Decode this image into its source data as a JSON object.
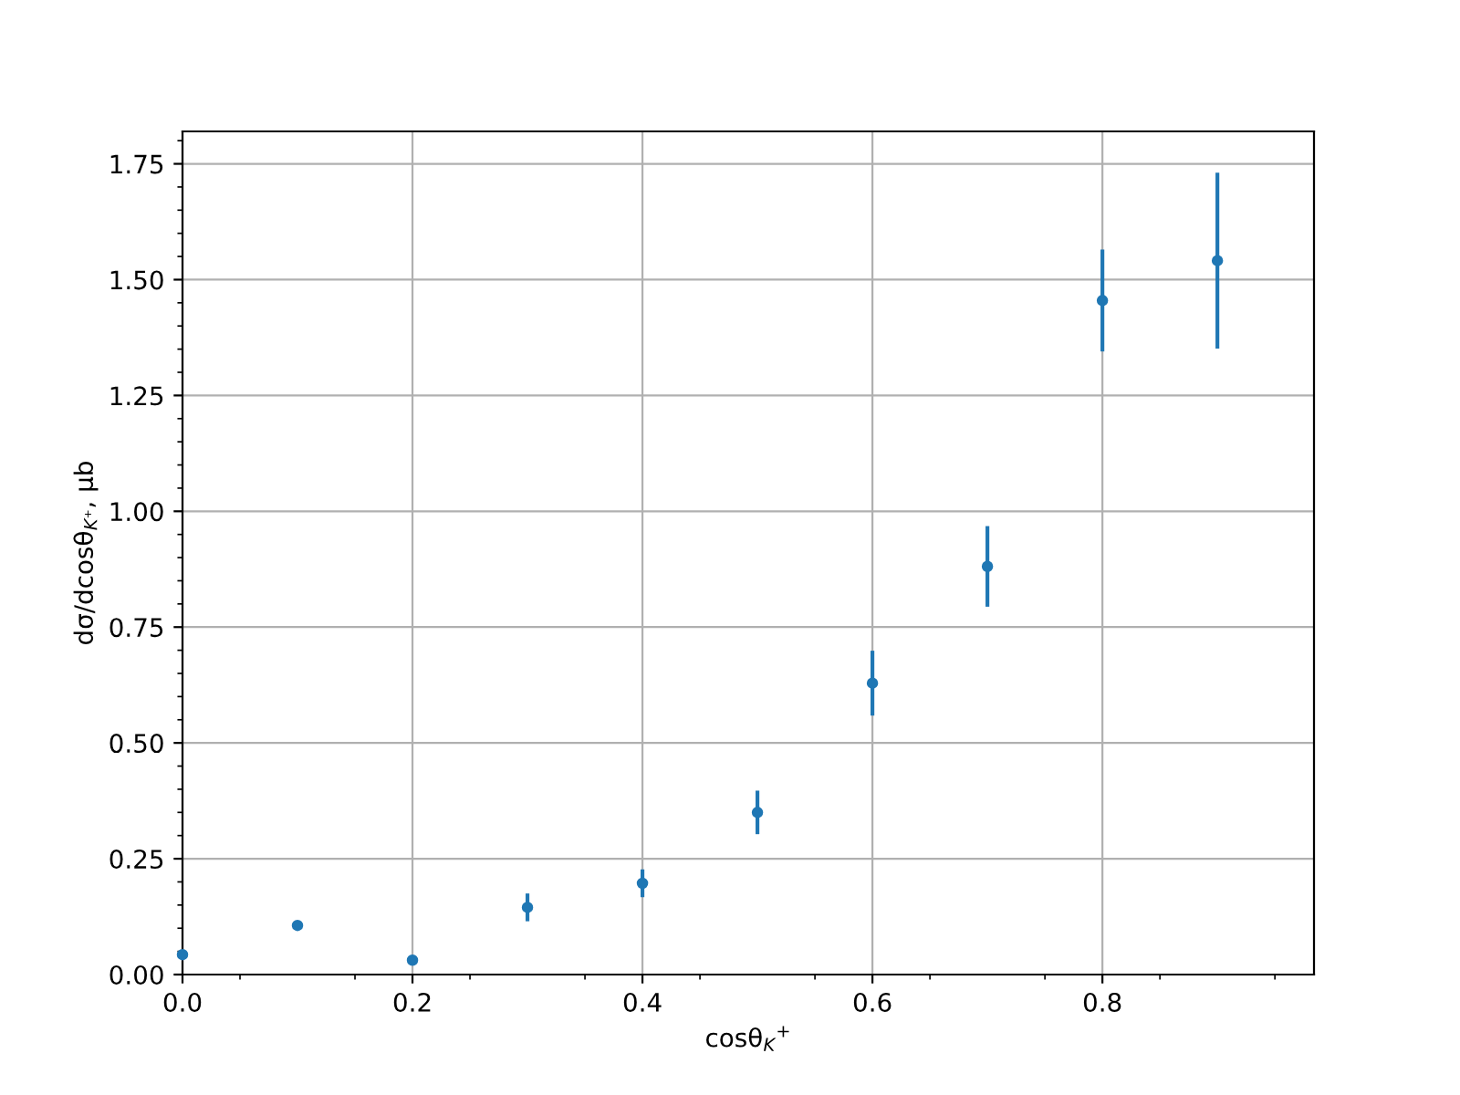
{
  "chart_data": {
    "type": "scatter",
    "xlabel": "cosθ$_{K}$$^{+}$",
    "ylabel": "dσ/dcosθ$_{K⁺}$, μb",
    "x": [
      0.0,
      0.1,
      0.2,
      0.3,
      0.4,
      0.5,
      0.6,
      0.7,
      0.8,
      0.9
    ],
    "series": [
      {
        "color": "#1f77b4",
        "values": [
          0.043,
          0.106,
          0.031,
          0.145,
          0.197,
          0.35,
          0.629,
          0.881,
          1.455,
          1.541
        ],
        "errors": [
          null,
          null,
          null,
          0.03,
          0.03,
          0.047,
          0.07,
          0.087,
          0.11,
          0.19
        ]
      }
    ],
    "xlim": [
      0.0,
      0.984
    ],
    "xticks": [
      {
        "value": 0.0,
        "label": "0.0"
      },
      {
        "value": 0.2,
        "label": "0.2"
      },
      {
        "value": 0.4,
        "label": "0.4"
      },
      {
        "value": 0.6,
        "label": "0.6"
      },
      {
        "value": 0.8,
        "label": "0.8"
      }
    ],
    "ylim": [
      0.0,
      1.82
    ],
    "yticks": [
      {
        "value": 0.0,
        "label": "0.00"
      },
      {
        "value": 0.25,
        "label": "0.25"
      },
      {
        "value": 0.5,
        "label": "0.50"
      },
      {
        "value": 0.75,
        "label": "0.75"
      },
      {
        "value": 1.0,
        "label": "1.00"
      },
      {
        "value": 1.25,
        "label": "1.25"
      },
      {
        "value": 1.5,
        "label": "1.50"
      },
      {
        "value": 1.75,
        "label": "1.75"
      }
    ],
    "grid": true,
    "marker": "circle"
  }
}
